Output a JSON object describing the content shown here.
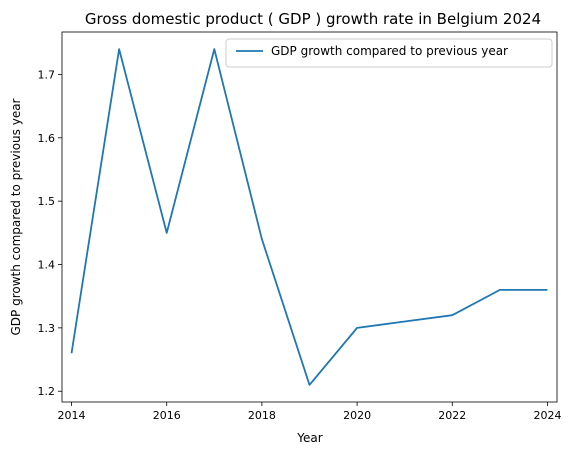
{
  "chart_data": {
    "type": "line",
    "title": "Gross domestic product ( GDP ) growth rate in Belgium 2024",
    "xlabel": "Year",
    "ylabel": "GDP growth compared to previous year",
    "xlim": [
      2013.8,
      2024.2
    ],
    "ylim": [
      1.183,
      1.767
    ],
    "xticks": [
      2014,
      2016,
      2018,
      2020,
      2022,
      2024
    ],
    "yticks": [
      1.2,
      1.3,
      1.4,
      1.5,
      1.6,
      1.7
    ],
    "grid": false,
    "legend_position": "upper-right",
    "series": [
      {
        "name": "GDP growth compared to previous year",
        "color": "#1f77b4",
        "x": [
          2014,
          2015,
          2016,
          2017,
          2018,
          2019,
          2020,
          2021,
          2022,
          2023,
          2024
        ],
        "y": [
          1.26,
          1.74,
          1.45,
          1.74,
          1.44,
          1.21,
          1.3,
          1.31,
          1.32,
          1.36,
          1.36
        ]
      }
    ]
  }
}
